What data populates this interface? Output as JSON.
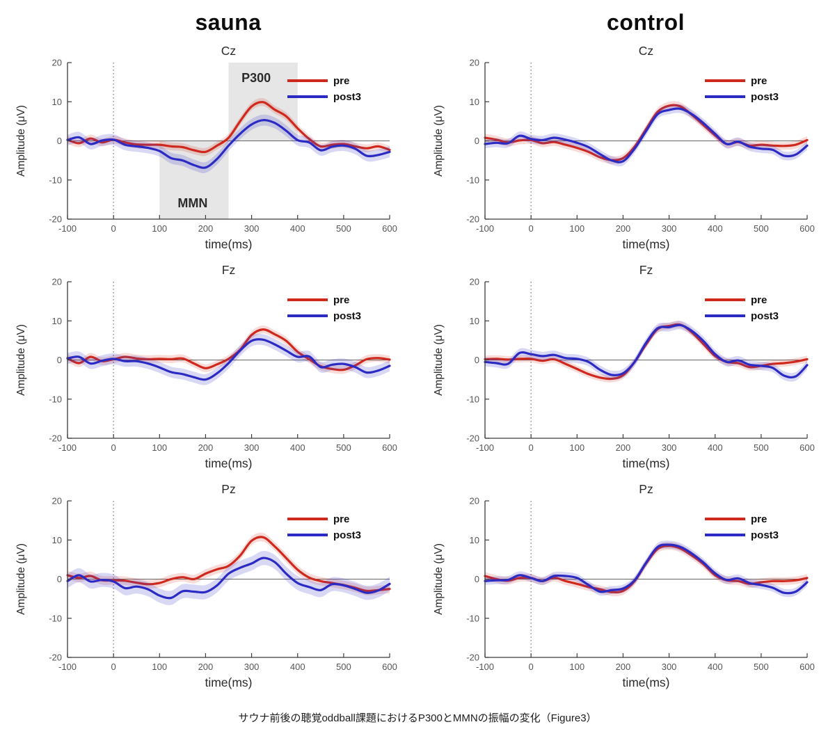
{
  "page": {
    "caption": "サウナ前後の聴覚oddball課題におけるP300とMMNの振幅の変化（Figure3）"
  },
  "columns": [
    {
      "label": "sauna"
    },
    {
      "label": "control"
    }
  ],
  "colors": {
    "pre": "#cf291d",
    "post3": "#2b2bc4",
    "pre_band": "rgba(207,41,29,0.17)",
    "post3_band": "rgba(60,60,205,0.20)",
    "shade": "#e6e6e6",
    "axis": "#3a3a3a",
    "tick_label": "#555555",
    "zero_line": "#666666",
    "event_line": "#777777",
    "title_text": "#2a2a2a",
    "annotation_text": "#2b2b2b",
    "legend_text": "#111111"
  },
  "chart_data": [
    {
      "type": "line",
      "title": "Cz",
      "column": "sauna",
      "xlabel": "time(ms)",
      "ylabel": "Amplitude (μV)",
      "xlim": [
        -100,
        600
      ],
      "ylim": [
        -20,
        20
      ],
      "xticks": [
        -100,
        0,
        100,
        200,
        300,
        400,
        500,
        600
      ],
      "yticks": [
        -20,
        -10,
        0,
        10,
        20
      ],
      "zero_line": true,
      "event_line_x": 0,
      "legend": {
        "position": "top-right",
        "entries": [
          {
            "label": "pre",
            "color": "pre"
          },
          {
            "label": "post3",
            "color": "post3"
          }
        ]
      },
      "annotations": [
        {
          "type": "box",
          "label": "MMN",
          "x0": 100,
          "x1": 250,
          "y0": -20,
          "y1": 0,
          "label_x": 172,
          "label_y": -17
        },
        {
          "type": "box",
          "label": "P300",
          "x0": 250,
          "x1": 400,
          "y0": 0,
          "y1": 20,
          "label_x": 310,
          "label_y": 15
        }
      ],
      "x": [
        -100,
        -75,
        -50,
        -25,
        0,
        25,
        50,
        75,
        100,
        125,
        150,
        175,
        200,
        225,
        250,
        275,
        300,
        325,
        350,
        375,
        400,
        425,
        450,
        475,
        500,
        525,
        550,
        575,
        600
      ],
      "series": [
        {
          "name": "pre",
          "band": 1.0,
          "values": [
            0.3,
            -0.6,
            0.6,
            -0.4,
            0.3,
            -0.4,
            -0.9,
            -1.0,
            -1.0,
            -1.4,
            -1.6,
            -2.4,
            -2.8,
            -1.2,
            0.8,
            5.0,
            8.8,
            9.9,
            8.0,
            6.3,
            3.2,
            0.5,
            -1.4,
            -1.0,
            -0.8,
            -1.4,
            -1.9,
            -1.4,
            -2.3
          ]
        },
        {
          "name": "post3",
          "band": 1.4,
          "values": [
            0.2,
            0.9,
            -0.8,
            0.1,
            0.3,
            -1.0,
            -1.4,
            -1.8,
            -2.6,
            -4.4,
            -5.0,
            -6.2,
            -6.8,
            -4.6,
            -1.2,
            1.8,
            4.2,
            5.3,
            4.6,
            2.6,
            0.2,
            -0.4,
            -2.4,
            -1.5,
            -1.2,
            -2.0,
            -3.8,
            -3.6,
            -2.8
          ]
        }
      ]
    },
    {
      "type": "line",
      "title": "Cz",
      "column": "control",
      "xlabel": "time(ms)",
      "ylabel": "Amplitude (μV)",
      "xlim": [
        -100,
        600
      ],
      "ylim": [
        -20,
        20
      ],
      "xticks": [
        -100,
        0,
        100,
        200,
        300,
        400,
        500,
        600
      ],
      "yticks": [
        -20,
        -10,
        0,
        10,
        20
      ],
      "zero_line": true,
      "event_line_x": 0,
      "legend": {
        "position": "top-right",
        "entries": [
          {
            "label": "pre",
            "color": "pre"
          },
          {
            "label": "post3",
            "color": "post3"
          }
        ]
      },
      "annotations": [],
      "x": [
        -100,
        -75,
        -50,
        -25,
        0,
        25,
        50,
        75,
        100,
        125,
        150,
        175,
        200,
        225,
        250,
        275,
        300,
        325,
        350,
        375,
        400,
        425,
        450,
        475,
        500,
        525,
        550,
        575,
        600
      ],
      "series": [
        {
          "name": "pre",
          "band": 1.0,
          "values": [
            0.8,
            0.3,
            -0.4,
            0.1,
            0.2,
            -0.6,
            -0.3,
            -1.0,
            -1.8,
            -2.8,
            -4.2,
            -4.9,
            -4.4,
            -1.5,
            3.0,
            7.4,
            9.0,
            8.8,
            6.6,
            4.0,
            1.4,
            -0.8,
            -0.3,
            -1.2,
            -1.0,
            -1.2,
            -1.3,
            -1.0,
            0.2
          ]
        },
        {
          "name": "post3",
          "band": 1.1,
          "values": [
            -0.8,
            -0.5,
            -0.6,
            1.3,
            0.5,
            0.2,
            0.8,
            0.3,
            -0.5,
            -1.6,
            -3.4,
            -5.0,
            -5.2,
            -2.0,
            2.5,
            6.8,
            7.9,
            8.2,
            6.8,
            4.5,
            1.8,
            -0.8,
            -0.2,
            -1.5,
            -2.0,
            -2.3,
            -3.8,
            -3.5,
            -1.2
          ]
        }
      ]
    },
    {
      "type": "line",
      "title": "Fz",
      "column": "sauna",
      "xlabel": "time(ms)",
      "ylabel": "Amplitude (μV)",
      "xlim": [
        -100,
        600
      ],
      "ylim": [
        -20,
        20
      ],
      "xticks": [
        -100,
        0,
        100,
        200,
        300,
        400,
        500,
        600
      ],
      "yticks": [
        -20,
        -10,
        0,
        10,
        20
      ],
      "zero_line": true,
      "event_line_x": 0,
      "legend": {
        "position": "top-right",
        "entries": [
          {
            "label": "pre",
            "color": "pre"
          },
          {
            "label": "post3",
            "color": "post3"
          }
        ]
      },
      "annotations": [],
      "x": [
        -100,
        -75,
        -50,
        -25,
        0,
        25,
        50,
        75,
        100,
        125,
        150,
        175,
        200,
        225,
        250,
        275,
        300,
        325,
        350,
        375,
        400,
        425,
        450,
        475,
        500,
        525,
        550,
        575,
        600
      ],
      "series": [
        {
          "name": "pre",
          "band": 1.0,
          "values": [
            0.5,
            -0.8,
            0.8,
            -0.3,
            0.2,
            0.8,
            0.4,
            0.2,
            0.3,
            0.2,
            0.4,
            -0.9,
            -2.1,
            -1.1,
            0.3,
            2.6,
            6.4,
            7.8,
            6.6,
            4.9,
            2.1,
            0.2,
            -1.6,
            -2.3,
            -2.5,
            -1.4,
            0.2,
            0.5,
            0.1
          ]
        },
        {
          "name": "post3",
          "band": 1.4,
          "values": [
            0.4,
            0.8,
            -0.9,
            -0.2,
            0.3,
            -0.3,
            -0.3,
            -0.9,
            -1.9,
            -3.1,
            -3.6,
            -4.4,
            -5.0,
            -3.4,
            -0.8,
            2.4,
            4.9,
            5.2,
            4.0,
            2.4,
            0.8,
            0.9,
            -1.8,
            -1.2,
            -1.0,
            -1.8,
            -3.2,
            -2.7,
            -1.5
          ]
        }
      ]
    },
    {
      "type": "line",
      "title": "Fz",
      "column": "control",
      "xlabel": "time(ms)",
      "ylabel": "Amplitude (μV)",
      "xlim": [
        -100,
        600
      ],
      "ylim": [
        -20,
        20
      ],
      "xticks": [
        -100,
        0,
        100,
        200,
        300,
        400,
        500,
        600
      ],
      "yticks": [
        -20,
        -10,
        0,
        10,
        20
      ],
      "zero_line": true,
      "event_line_x": 0,
      "legend": {
        "position": "top-right",
        "entries": [
          {
            "label": "pre",
            "color": "pre"
          },
          {
            "label": "post3",
            "color": "post3"
          }
        ]
      },
      "annotations": [],
      "x": [
        -100,
        -75,
        -50,
        -25,
        0,
        25,
        50,
        75,
        100,
        125,
        150,
        175,
        200,
        225,
        250,
        275,
        300,
        325,
        350,
        375,
        400,
        425,
        450,
        475,
        500,
        525,
        550,
        575,
        600
      ],
      "series": [
        {
          "name": "pre",
          "band": 0.9,
          "values": [
            0.2,
            0.3,
            0.1,
            0.3,
            0.3,
            -0.2,
            0.2,
            -1.0,
            -2.3,
            -3.6,
            -4.5,
            -4.8,
            -3.9,
            -0.5,
            4.0,
            7.9,
            8.7,
            9.0,
            7.0,
            4.0,
            1.0,
            -0.5,
            -0.8,
            -1.8,
            -1.5,
            -1.0,
            -0.8,
            -0.4,
            0.2
          ]
        },
        {
          "name": "post3",
          "band": 1.1,
          "values": [
            -0.5,
            -0.8,
            -1.0,
            1.8,
            1.5,
            1.0,
            1.3,
            0.5,
            0.3,
            -0.5,
            -2.5,
            -3.8,
            -3.4,
            -0.5,
            4.4,
            8.1,
            8.4,
            8.9,
            7.4,
            4.8,
            1.5,
            -0.5,
            -0.1,
            -1.2,
            -1.5,
            -2.0,
            -4.0,
            -4.2,
            -1.3
          ]
        }
      ]
    },
    {
      "type": "line",
      "title": "Pz",
      "column": "sauna",
      "xlabel": "time(ms)",
      "ylabel": "Amplitude (μV)",
      "xlim": [
        -100,
        600
      ],
      "ylim": [
        -20,
        20
      ],
      "xticks": [
        -100,
        0,
        100,
        200,
        300,
        400,
        500,
        600
      ],
      "yticks": [
        -20,
        -10,
        0,
        10,
        20
      ],
      "zero_line": true,
      "event_line_x": 0,
      "legend": {
        "position": "top-right",
        "entries": [
          {
            "label": "pre",
            "color": "pre"
          },
          {
            "label": "post3",
            "color": "post3"
          }
        ]
      },
      "annotations": [],
      "x": [
        -100,
        -75,
        -50,
        -25,
        0,
        25,
        50,
        75,
        100,
        125,
        150,
        175,
        200,
        225,
        250,
        275,
        300,
        325,
        350,
        375,
        400,
        425,
        450,
        475,
        500,
        525,
        550,
        575,
        600
      ],
      "series": [
        {
          "name": "pre",
          "band": 1.1,
          "values": [
            1.0,
            0.3,
            0.8,
            -0.3,
            -0.3,
            -0.4,
            -0.9,
            -1.3,
            -1.0,
            0.0,
            0.5,
            0.0,
            1.4,
            2.5,
            3.4,
            6.0,
            9.8,
            10.7,
            8.4,
            5.4,
            2.4,
            0.4,
            -0.5,
            -1.0,
            -1.5,
            -2.2,
            -3.0,
            -2.8,
            -2.5
          ]
        },
        {
          "name": "post3",
          "band": 1.8,
          "values": [
            -0.5,
            1.0,
            -0.6,
            -0.2,
            -0.6,
            -2.3,
            -1.9,
            -2.6,
            -4.2,
            -4.8,
            -3.1,
            -3.2,
            -3.3,
            -1.6,
            1.4,
            2.9,
            4.0,
            5.4,
            4.4,
            1.4,
            -1.0,
            -2.0,
            -2.8,
            -1.3,
            -1.6,
            -2.5,
            -3.5,
            -2.9,
            -1.2
          ]
        }
      ]
    },
    {
      "type": "line",
      "title": "Pz",
      "column": "control",
      "xlabel": "time(ms)",
      "ylabel": "Amplitude (μV)",
      "xlim": [
        -100,
        600
      ],
      "ylim": [
        -20,
        20
      ],
      "xticks": [
        -100,
        0,
        100,
        200,
        300,
        400,
        500,
        600
      ],
      "yticks": [
        -20,
        -10,
        0,
        10,
        20
      ],
      "zero_line": true,
      "event_line_x": 0,
      "legend": {
        "position": "top-right",
        "entries": [
          {
            "label": "pre",
            "color": "pre"
          },
          {
            "label": "post3",
            "color": "post3"
          }
        ]
      },
      "annotations": [],
      "x": [
        -100,
        -75,
        -50,
        -25,
        0,
        25,
        50,
        75,
        100,
        125,
        150,
        175,
        200,
        225,
        250,
        275,
        300,
        325,
        350,
        375,
        400,
        425,
        450,
        475,
        500,
        525,
        550,
        575,
        600
      ],
      "series": [
        {
          "name": "pre",
          "band": 1.0,
          "values": [
            0.8,
            0.0,
            -0.4,
            0.3,
            0.3,
            -0.5,
            0.4,
            -0.5,
            -1.2,
            -2.0,
            -2.6,
            -3.3,
            -3.0,
            -0.5,
            4.0,
            7.7,
            8.5,
            7.8,
            6.0,
            3.8,
            1.0,
            -0.3,
            -0.5,
            -1.2,
            -0.8,
            -0.5,
            -0.5,
            -0.3,
            0.3
          ]
        },
        {
          "name": "post3",
          "band": 1.0,
          "values": [
            -0.5,
            -0.3,
            -0.2,
            1.0,
            0.3,
            -0.5,
            0.8,
            0.8,
            0.3,
            -1.5,
            -3.2,
            -2.8,
            -2.4,
            -0.3,
            4.2,
            8.2,
            8.8,
            8.2,
            6.5,
            4.2,
            1.5,
            -0.2,
            0.2,
            -1.0,
            -1.5,
            -2.2,
            -3.5,
            -3.2,
            -0.8
          ]
        }
      ]
    }
  ]
}
